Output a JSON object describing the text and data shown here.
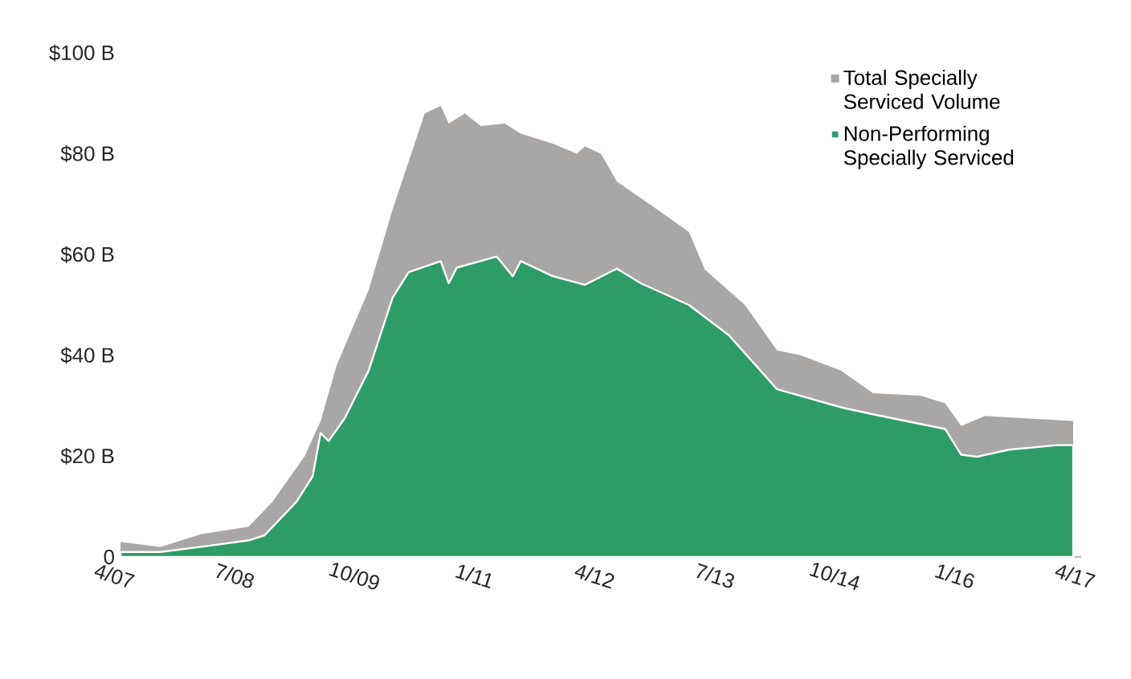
{
  "chart_data": {
    "type": "area",
    "xlim": [
      "2007-04",
      "2017-04"
    ],
    "xticks": [
      {
        "value": "2007-04",
        "label": "4/07"
      },
      {
        "value": "2008-07",
        "label": "7/08"
      },
      {
        "value": "2009-10",
        "label": "10/09"
      },
      {
        "value": "2011-01",
        "label": "1/11"
      },
      {
        "value": "2012-04",
        "label": "4/12"
      },
      {
        "value": "2013-07",
        "label": "7/13"
      },
      {
        "value": "2014-10",
        "label": "10/14"
      },
      {
        "value": "2016-01",
        "label": "1/16"
      },
      {
        "value": "2017-04",
        "label": "4/17"
      }
    ],
    "ylim": [
      0,
      100
    ],
    "yticks": [
      {
        "value": 0,
        "label": "0"
      },
      {
        "value": 20,
        "label": "$20 B"
      },
      {
        "value": 40,
        "label": "$40 B"
      },
      {
        "value": 60,
        "label": "$60 B"
      },
      {
        "value": 80,
        "label": "$80 B"
      },
      {
        "value": 100,
        "label": "$100 B"
      }
    ],
    "legend": "top right",
    "grid": false,
    "series": [
      {
        "name": "Total Specially Serviced Volume",
        "color": "#a9a6a6",
        "x": [
          "2007-04",
          "2007-09",
          "2008-02",
          "2008-08",
          "2008-11",
          "2009-03",
          "2009-05",
          "2009-07",
          "2009-11",
          "2010-02",
          "2010-06",
          "2010-08",
          "2010-09",
          "2010-11",
          "2011-01",
          "2011-04",
          "2011-06",
          "2011-10",
          "2012-01",
          "2012-02",
          "2012-04",
          "2012-06",
          "2012-11",
          "2013-03",
          "2013-05",
          "2013-10",
          "2014-02",
          "2014-05",
          "2014-10",
          "2015-02",
          "2015-08",
          "2015-11",
          "2016-01",
          "2016-04",
          "2016-09",
          "2017-03"
        ],
        "values": [
          3,
          2,
          4.5,
          6,
          11,
          20,
          27,
          38,
          53,
          69,
          88,
          89.5,
          86,
          88,
          85.5,
          86,
          84,
          82,
          80,
          81.5,
          80,
          74.5,
          69,
          64.5,
          57,
          50,
          41,
          40,
          37,
          32.5,
          32,
          30.5,
          26,
          28,
          27.5,
          27
        ]
      },
      {
        "name": "Non-Performing Specially Serviced",
        "color": "#2e9c66",
        "x": [
          "2007-04",
          "2007-09",
          "2008-02",
          "2008-08",
          "2008-10",
          "2009-02",
          "2009-04",
          "2009-05",
          "2009-06",
          "2009-08",
          "2009-11",
          "2010-02",
          "2010-04",
          "2010-08",
          "2010-09",
          "2010-10",
          "2011-03",
          "2011-05",
          "2011-06",
          "2011-10",
          "2012-02",
          "2012-06",
          "2012-09",
          "2013-03",
          "2013-08",
          "2014-02",
          "2014-10",
          "2015-02",
          "2015-11",
          "2016-01",
          "2016-03",
          "2016-07",
          "2017-01",
          "2017-03"
        ],
        "values": [
          1,
          1,
          2,
          3.3,
          4.3,
          11,
          16,
          24.6,
          23,
          27.5,
          37,
          51.5,
          56.5,
          58.7,
          54.3,
          57.4,
          59.6,
          55.7,
          58.7,
          55.7,
          54,
          57.2,
          54.3,
          50,
          44,
          33.3,
          29.7,
          28.3,
          25.4,
          20.3,
          19.9,
          21.3,
          22.2,
          22.2
        ]
      }
    ]
  }
}
